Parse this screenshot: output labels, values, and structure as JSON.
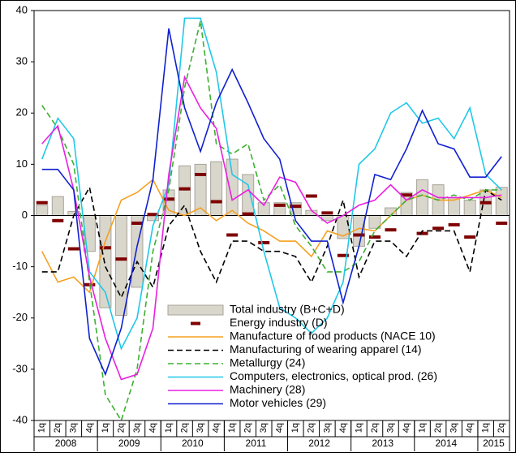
{
  "chart_data": {
    "type": "combo",
    "categories": [
      "1q",
      "2q",
      "3q",
      "4q",
      "1q",
      "2q",
      "3q",
      "4q",
      "1q",
      "2q",
      "3q",
      "4q",
      "1q",
      "2q",
      "3q",
      "4q",
      "1q",
      "2q",
      "3q",
      "4q",
      "1q",
      "2q",
      "3q",
      "4q",
      "1q",
      "2q",
      "3q",
      "4q",
      "1q",
      "2q"
    ],
    "years": [
      "2008",
      "2009",
      "2010",
      "2011",
      "2012",
      "2013",
      "2014",
      "2015"
    ],
    "ylim": [
      -40,
      40
    ],
    "yticks": [
      -40,
      -30,
      -20,
      -10,
      0,
      10,
      20,
      30,
      40
    ],
    "series": [
      {
        "name": "Total industry (B+C+D)",
        "kind": "bar",
        "color": "#d9d6cc",
        "values": [
          2.0,
          3.7,
          0.8,
          -7.0,
          -18.0,
          -19.5,
          -14.0,
          -1.0,
          5.0,
          9.7,
          10.0,
          10.5,
          11.0,
          8.0,
          2.5,
          2.5,
          2.5,
          1.0,
          -1.0,
          -4.5,
          -6.0,
          -2.5,
          1.5,
          4.5,
          7.0,
          6.0,
          3.5,
          3.0,
          5.0,
          5.5
        ]
      },
      {
        "name": "Energy industry (D)",
        "kind": "marker",
        "color": "#7f0000",
        "values": [
          2.5,
          -1,
          -6.5,
          -13.5,
          -6.3,
          -8.5,
          -1.5,
          0.2,
          3.2,
          5.2,
          8.0,
          2.7,
          -3.8,
          0.3,
          -5.3,
          2.0,
          1.8,
          3.8,
          0.5,
          -7.8,
          -3.8,
          -4.2,
          -2.8,
          4.0,
          -3.5,
          -2.5,
          -1.8,
          -4.2,
          2.5,
          -1.5
        ]
      },
      {
        "name": "Manufacture of food products (NACE 10)",
        "kind": "line",
        "color": "#f5a020",
        "dashed": false,
        "values": [
          -7,
          -13,
          -12,
          -15,
          -5,
          3,
          4.5,
          7,
          1,
          0,
          1.5,
          -1,
          1,
          -1.5,
          -3,
          -5,
          -5,
          -8,
          -3,
          -4,
          -2.5,
          -3,
          0,
          3,
          4,
          3,
          3,
          4,
          5,
          3.5
        ]
      },
      {
        "name": "Manufacturing of wearing apparel (14)",
        "kind": "line",
        "color": "#000000",
        "dashed": true,
        "values": [
          -11,
          -11,
          0,
          5.5,
          -10,
          -16,
          -9,
          -14,
          -2,
          2,
          -7,
          -13,
          -5,
          -5,
          -7,
          -7,
          -8,
          -13,
          -6,
          3,
          -12,
          -5,
          -5,
          -8,
          -3,
          -3,
          -3,
          -11,
          5,
          3
        ]
      },
      {
        "name": "Metallurgy (24)",
        "kind": "line",
        "color": "#3cb030",
        "dashed": true,
        "values": [
          21.5,
          17,
          10,
          -13,
          -35,
          -40,
          -30,
          -7,
          5,
          25,
          38,
          14,
          12,
          14,
          3,
          6,
          -2,
          -6,
          -11,
          -11,
          -9,
          -3,
          0,
          3,
          4,
          3,
          4,
          3,
          5,
          5
        ]
      },
      {
        "name": "Computers, electronics, optical prod. (26)",
        "kind": "line",
        "color": "#20c8e8",
        "dashed": false,
        "values": [
          11,
          19,
          15,
          -11,
          -15,
          -26,
          -20,
          -2,
          6,
          38.5,
          38.5,
          28,
          8,
          6,
          -7,
          -18,
          -20,
          -23,
          -20,
          -13,
          10,
          13,
          20,
          22,
          18,
          19,
          15,
          21,
          8,
          5
        ]
      },
      {
        "name": "Machinery (28)",
        "kind": "line",
        "color": "#e820e0",
        "dashed": false,
        "values": [
          14,
          17.5,
          5,
          -12,
          -24,
          -32,
          -31,
          -22,
          8,
          27,
          21,
          17,
          3,
          5,
          2,
          7.5,
          6.5,
          1,
          -1.5,
          0,
          2,
          3,
          6,
          3,
          5,
          3.5,
          3.5,
          3.5,
          3.5,
          4
        ]
      },
      {
        "name": "Motor vehicles (29)",
        "kind": "line",
        "color": "#1020d0",
        "dashed": false,
        "values": [
          9,
          9,
          5,
          -24,
          -31,
          -22,
          -6,
          7,
          36.5,
          21,
          12.5,
          22,
          28.5,
          22,
          15,
          11,
          -1,
          -5,
          -5,
          -17,
          -6,
          8,
          7,
          13,
          20.5,
          14,
          13,
          7.5,
          7.5,
          11.5
        ]
      }
    ]
  }
}
